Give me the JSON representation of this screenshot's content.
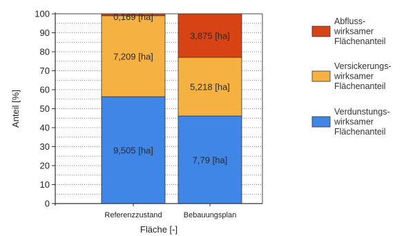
{
  "chart_data": {
    "type": "bar",
    "stacked": true,
    "percent_stacked": true,
    "categories": [
      "Referenzzustand",
      "Bebauungsplan"
    ],
    "series": [
      {
        "name": "Verdunstungs-\nwirksamer\nFlächenanteil",
        "values": [
          9.505,
          7.79
        ],
        "labels": [
          "9,505 [ha]",
          "7,79 [ha]"
        ],
        "color": "#3f86e6"
      },
      {
        "name": "Versickerungs-\nwirksamer\nFlächenanteil",
        "values": [
          7.209,
          5.218
        ],
        "labels": [
          "7,209 [ha]",
          "5,218 [ha]"
        ],
        "color": "#f6b143"
      },
      {
        "name": "Abfluss-\nwirksamer\nFlächenanteil",
        "values": [
          0.169,
          3.875
        ],
        "labels": [
          "0,169 [ha]",
          "3,875 [ha]"
        ],
        "color": "#d84315"
      }
    ],
    "legend_order": [
      2,
      1,
      0
    ],
    "xlabel": "Fläche [-]",
    "ylabel": "Anteil [%]",
    "ylim": [
      0,
      100
    ],
    "yticks": [
      0,
      10,
      20,
      30,
      40,
      50,
      60,
      70,
      80,
      90,
      100
    ],
    "grid": true,
    "legend_position": "right"
  }
}
